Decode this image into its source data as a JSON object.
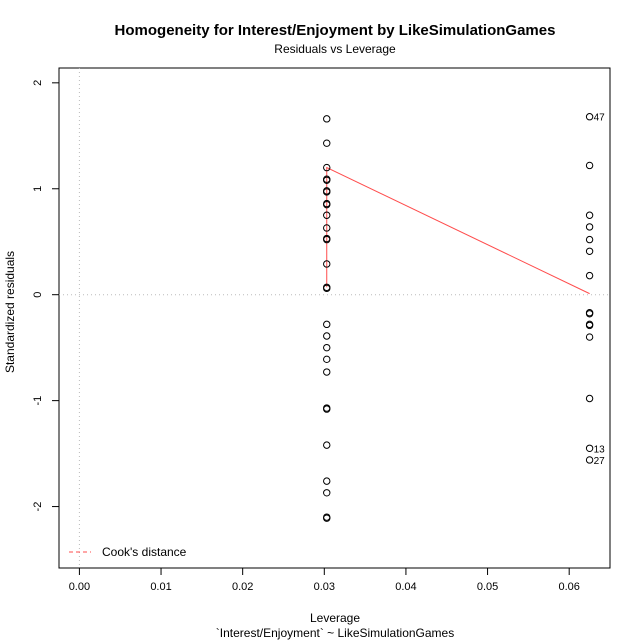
{
  "chart_data": {
    "type": "scatter",
    "title": "Homogeneity for Interest/Enjoyment by LikeSimulationGames",
    "subtitle": "Residuals vs Leverage",
    "xlabel": "Leverage",
    "xlabel2": "`Interest/Enjoyment` ~ LikeSimulationGames",
    "ylabel": "Standardized residuals",
    "xlim": [
      -0.0025,
      0.065
    ],
    "ylim": [
      -2.58,
      2.14
    ],
    "x_ticks": [
      "0.00",
      "0.01",
      "0.02",
      "0.03",
      "0.04",
      "0.05",
      "0.06"
    ],
    "x_tick_values": [
      0,
      0.01,
      0.02,
      0.03,
      0.04,
      0.05,
      0.06
    ],
    "y_ticks": [
      "-2",
      "-1",
      "0",
      "1",
      "2"
    ],
    "y_tick_values": [
      -2,
      -1,
      0,
      1,
      2
    ],
    "reference_lines": {
      "x": 0,
      "y": 0,
      "style": "dotted",
      "color": "#bbbbbb"
    },
    "points": [
      {
        "x": 0.0303,
        "y": 1.66
      },
      {
        "x": 0.0303,
        "y": 1.43
      },
      {
        "x": 0.0303,
        "y": 1.2
      },
      {
        "x": 0.0303,
        "y": 1.09
      },
      {
        "x": 0.0303,
        "y": 1.08
      },
      {
        "x": 0.0303,
        "y": 0.98
      },
      {
        "x": 0.0303,
        "y": 0.97
      },
      {
        "x": 0.0303,
        "y": 0.86
      },
      {
        "x": 0.0303,
        "y": 0.85
      },
      {
        "x": 0.0303,
        "y": 0.75
      },
      {
        "x": 0.0303,
        "y": 0.63
      },
      {
        "x": 0.0303,
        "y": 0.53
      },
      {
        "x": 0.0303,
        "y": 0.52
      },
      {
        "x": 0.0303,
        "y": 0.29
      },
      {
        "x": 0.0303,
        "y": 0.07
      },
      {
        "x": 0.0303,
        "y": 0.06
      },
      {
        "x": 0.0303,
        "y": -0.28
      },
      {
        "x": 0.0303,
        "y": -0.39
      },
      {
        "x": 0.0303,
        "y": -0.5
      },
      {
        "x": 0.0303,
        "y": -0.61
      },
      {
        "x": 0.0303,
        "y": -0.73
      },
      {
        "x": 0.0303,
        "y": -1.07
      },
      {
        "x": 0.0303,
        "y": -1.08
      },
      {
        "x": 0.0303,
        "y": -1.42
      },
      {
        "x": 0.0303,
        "y": -1.76
      },
      {
        "x": 0.0303,
        "y": -1.87
      },
      {
        "x": 0.0303,
        "y": -2.1
      },
      {
        "x": 0.0303,
        "y": -2.11
      },
      {
        "x": 0.0625,
        "y": 1.68,
        "label": "47"
      },
      {
        "x": 0.0625,
        "y": 1.22
      },
      {
        "x": 0.0625,
        "y": 0.75
      },
      {
        "x": 0.0625,
        "y": 0.64
      },
      {
        "x": 0.0625,
        "y": 0.52
      },
      {
        "x": 0.0625,
        "y": 0.41
      },
      {
        "x": 0.0625,
        "y": 0.18
      },
      {
        "x": 0.0625,
        "y": -0.17
      },
      {
        "x": 0.0625,
        "y": -0.18
      },
      {
        "x": 0.0625,
        "y": -0.28
      },
      {
        "x": 0.0625,
        "y": -0.29
      },
      {
        "x": 0.0625,
        "y": -0.4
      },
      {
        "x": 0.0625,
        "y": -0.98
      },
      {
        "x": 0.0625,
        "y": -1.45,
        "label": "13"
      },
      {
        "x": 0.0625,
        "y": -1.56,
        "label": "27"
      }
    ],
    "smooth_line": {
      "color": "#ff4d4d",
      "points": [
        {
          "x": 0.0303,
          "y": 0.07
        },
        {
          "x": 0.0303,
          "y": 1.2
        },
        {
          "x": 0.0625,
          "y": 0.01
        }
      ]
    },
    "legend": {
      "position": "bottom-left",
      "entries": [
        {
          "label": "Cook's distance",
          "color": "#ff4d4d",
          "style": "dashed"
        }
      ]
    }
  }
}
